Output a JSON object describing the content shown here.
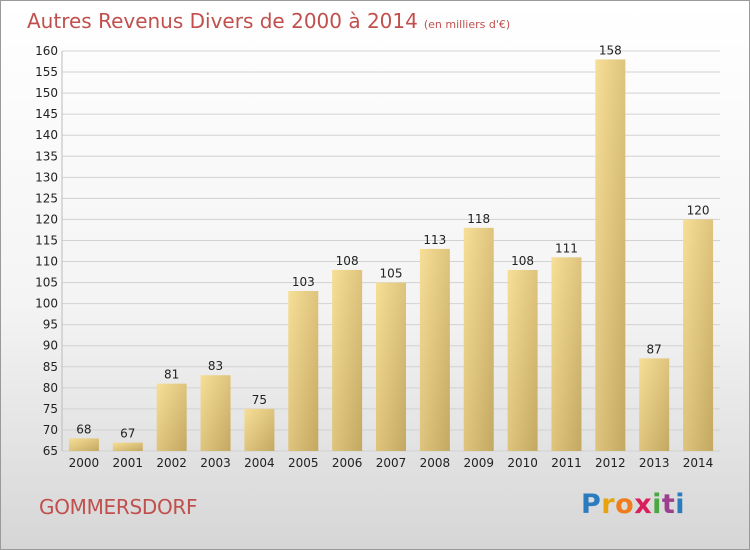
{
  "title": {
    "main": "Autres Revenus Divers de 2000 à 2014",
    "unit": "(en milliers d'€)"
  },
  "commune": "GOMMERSDORF",
  "logo": {
    "letters": [
      "P",
      "r",
      "o",
      "x",
      "i",
      "t",
      "i"
    ],
    "colors": [
      "#2b7bbf",
      "#e8a30c",
      "#f07d1b",
      "#d81e5b",
      "#4aa843",
      "#9c3f8d",
      "#2b7bbf"
    ]
  },
  "colors": {
    "bar_light": "#f7df97",
    "bar_dark": "#c4a862",
    "grid": "#d2d2d2",
    "title": "#c0504d"
  },
  "chart_data": {
    "type": "bar",
    "title": "Autres Revenus Divers de 2000 à 2014",
    "subtitle": "(en milliers d'€)",
    "xlabel": "",
    "ylabel": "",
    "categories": [
      "2000",
      "2001",
      "2002",
      "2003",
      "2004",
      "2005",
      "2006",
      "2007",
      "2008",
      "2009",
      "2010",
      "2011",
      "2012",
      "2013",
      "2014"
    ],
    "values": [
      68,
      67,
      81,
      83,
      75,
      103,
      108,
      105,
      113,
      118,
      108,
      111,
      158,
      87,
      120
    ],
    "ylim": [
      65,
      160
    ],
    "yticks": [
      65,
      70,
      75,
      80,
      85,
      90,
      95,
      100,
      105,
      110,
      115,
      120,
      125,
      130,
      135,
      140,
      145,
      150,
      155,
      160
    ],
    "grid": true,
    "legend": "none"
  }
}
